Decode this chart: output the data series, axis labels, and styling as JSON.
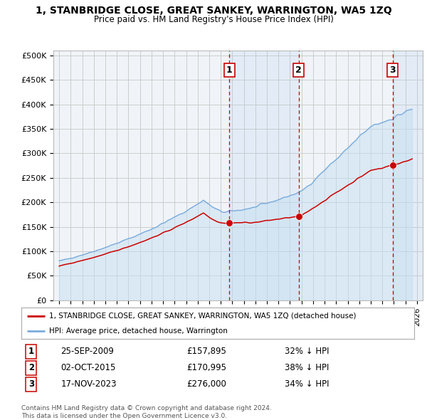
{
  "title": "1, STANBRIDGE CLOSE, GREAT SANKEY, WARRINGTON, WA5 1ZQ",
  "subtitle": "Price paid vs. HM Land Registry's House Price Index (HPI)",
  "legend_label_red": "1, STANBRIDGE CLOSE, GREAT SANKEY, WARRINGTON, WA5 1ZQ (detached house)",
  "legend_label_blue": "HPI: Average price, detached house, Warrington",
  "sales": [
    {
      "num": 1,
      "date": "25-SEP-2009",
      "price": 157895,
      "pct": "32% ↓ HPI",
      "year_x": 2009.73
    },
    {
      "num": 2,
      "date": "02-OCT-2015",
      "price": 170995,
      "pct": "38% ↓ HPI",
      "year_x": 2015.75
    },
    {
      "num": 3,
      "date": "17-NOV-2023",
      "price": 276000,
      "pct": "34% ↓ HPI",
      "year_x": 2023.88
    }
  ],
  "footer": "Contains HM Land Registry data © Crown copyright and database right 2024.\nThis data is licensed under the Open Government Licence v3.0.",
  "ylim": [
    0,
    510000
  ],
  "yticks": [
    0,
    50000,
    100000,
    150000,
    200000,
    250000,
    300000,
    350000,
    400000,
    450000,
    500000
  ],
  "ytick_labels": [
    "£0",
    "£50K",
    "£100K",
    "£150K",
    "£200K",
    "£250K",
    "£300K",
    "£350K",
    "£400K",
    "£450K",
    "£500K"
  ],
  "xlim": [
    1994.5,
    2026.5
  ],
  "hpi_color": "#7aabdc",
  "hpi_fill_color": "#c5dff2",
  "price_color": "#cc0000",
  "vline_color": "#cc0000",
  "shade_color": "#ddeeff",
  "background_color": "#f0f4f8",
  "grid_color": "#cccccc",
  "sale_years": [
    2009.73,
    2015.75,
    2023.88
  ],
  "sale_prices": [
    157895,
    170995,
    276000
  ]
}
